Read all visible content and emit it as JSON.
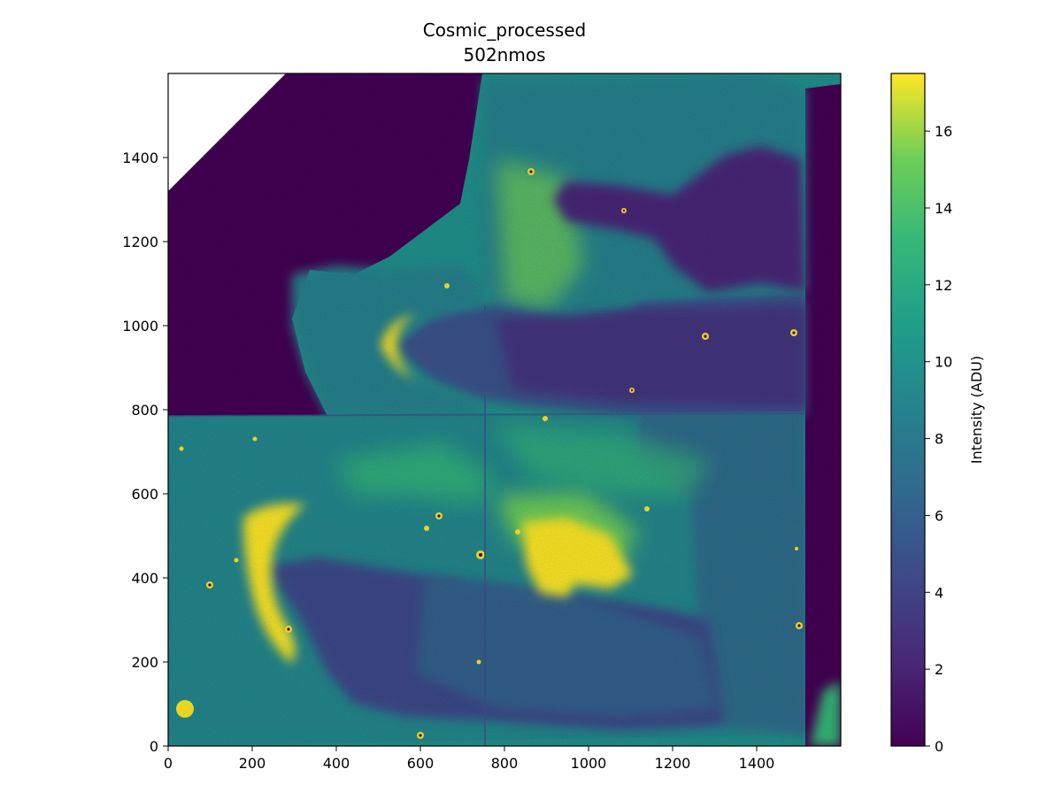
{
  "chart_data": {
    "type": "heatmap",
    "title": "Cosmic_processed",
    "subtitle": "502nmos",
    "xlabel": "",
    "ylabel": "",
    "xlim": [
      0,
      1600
    ],
    "ylim": [
      0,
      1600
    ],
    "x_ticks": [
      0,
      200,
      400,
      600,
      800,
      1000,
      1200,
      1400
    ],
    "y_ticks": [
      0,
      200,
      400,
      600,
      800,
      1000,
      1200,
      1400
    ],
    "colormap": "viridis",
    "colorbar": {
      "label": "Intensity (ADU)",
      "range": [
        0,
        17.5
      ],
      "ticks": [
        0,
        2,
        4,
        6,
        8,
        10,
        12,
        14,
        16
      ]
    },
    "grid": false,
    "image_description_regions": [
      {
        "region": "background_nebula",
        "intensity": 8
      },
      {
        "region": "dark_zero_region_upper_left",
        "intensity": 0
      },
      {
        "region": "bright_arc_left",
        "intensity": 17
      },
      {
        "region": "bright_star_center",
        "intensity": 17.5
      },
      {
        "region": "dark_dust_lanes",
        "intensity": 3
      },
      {
        "region": "bright_knot_lower_left",
        "intensity": 17.5
      }
    ],
    "colors": {
      "viridis_0": "#440154",
      "viridis_25": "#3b528b",
      "viridis_50": "#21918c",
      "viridis_75": "#5ec962",
      "viridis_100": "#fde725"
    }
  }
}
